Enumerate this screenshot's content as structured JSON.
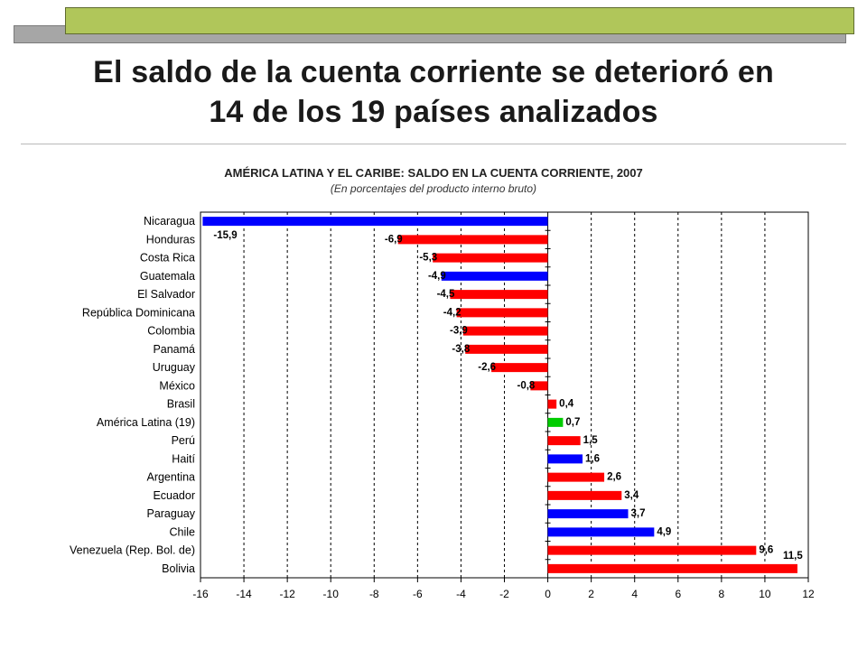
{
  "slide": {
    "title_lines": [
      "El saldo de la cuenta corriente se deterioró en",
      "14 de los 19 países analizados"
    ]
  },
  "colors": {
    "decor_green": "#b0c65a",
    "decor_gray": "#a6a6a6",
    "bar_red": "#ff0000",
    "bar_blue": "#0000ff",
    "bar_green": "#00cc00"
  },
  "chart_data": {
    "type": "bar",
    "orientation": "horizontal",
    "title": "AMÉRICA LATINA Y EL CARIBE: SALDO EN  LA CUENTA CORRIENTE, 2007",
    "subtitle": "(En porcentajes del producto interno bruto)",
    "xlabel": "",
    "ylabel": "",
    "xlim": [
      -16,
      12
    ],
    "xticks": [
      -16,
      -14,
      -12,
      -10,
      -8,
      -6,
      -4,
      -2,
      0,
      2,
      4,
      6,
      8,
      10,
      12
    ],
    "grid": "vertical-dashed",
    "legend": "none",
    "categories": [
      "Nicaragua",
      "Honduras",
      "Costa Rica",
      "Guatemala",
      "El Salvador",
      "República Dominicana",
      "Colombia",
      "Panamá",
      "Uruguay",
      "México",
      "Brasil",
      "América Latina (19)",
      "Perú",
      "Haití",
      "Argentina",
      "Ecuador",
      "Paraguay",
      "Chile",
      "Venezuela (Rep. Bol. de)",
      "Bolivia"
    ],
    "values": [
      -15.9,
      -6.9,
      -5.3,
      -4.9,
      -4.5,
      -4.2,
      -3.9,
      -3.8,
      -2.6,
      -0.8,
      0.4,
      0.7,
      1.5,
      1.6,
      2.6,
      3.4,
      3.7,
      4.9,
      9.6,
      11.5
    ],
    "value_labels": [
      "-15,9",
      "-6,9",
      "-5,3",
      "-4,9",
      "-4,5",
      "-4,2",
      "-3,9",
      "-3,8",
      "-2,6",
      "-0,8",
      "0,4",
      "0,7",
      "1,5",
      "1,6",
      "2,6",
      "3,4",
      "3,7",
      "4,9",
      "9,6",
      "11,5"
    ],
    "bar_colors": [
      "#0000ff",
      "#ff0000",
      "#ff0000",
      "#0000ff",
      "#ff0000",
      "#ff0000",
      "#ff0000",
      "#ff0000",
      "#ff0000",
      "#ff0000",
      "#ff0000",
      "#00cc00",
      "#ff0000",
      "#0000ff",
      "#ff0000",
      "#ff0000",
      "#0000ff",
      "#0000ff",
      "#ff0000",
      "#ff0000"
    ]
  }
}
